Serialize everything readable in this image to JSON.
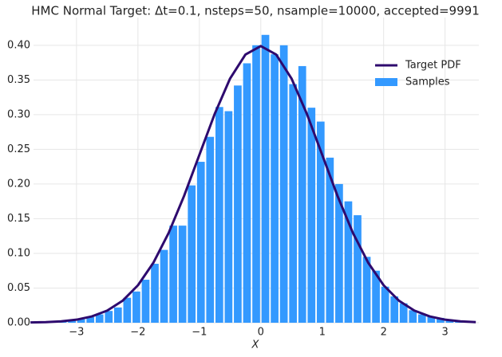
{
  "chart_data": {
    "type": "histogram",
    "title": "HMC Normal Target: Δt=0.1, nsteps=50, nsample=10000, accepted=9991",
    "x_label": "X",
    "xlim": [
      -3.7,
      3.55
    ],
    "ylim": [
      0,
      0.44
    ],
    "xticks": [
      {
        "value": -3,
        "label": "−3"
      },
      {
        "value": -2,
        "label": "−2"
      },
      {
        "value": -1,
        "label": "−1"
      },
      0,
      1,
      2,
      3
    ],
    "yticks": [
      {
        "value": 0,
        "label": "0.00"
      },
      {
        "value": 0.05,
        "label": "0.05"
      },
      {
        "value": 0.1,
        "label": "0.10"
      },
      {
        "value": 0.15,
        "label": "0.15"
      },
      {
        "value": 0.2,
        "label": "0.20"
      },
      {
        "value": 0.25,
        "label": "0.25"
      },
      {
        "value": 0.3,
        "label": "0.30"
      },
      {
        "value": 0.35,
        "label": "0.35"
      },
      {
        "value": 0.4,
        "label": "0.40"
      }
    ],
    "grid": true,
    "legend": "upper right",
    "series": [
      {
        "name": "Target PDF",
        "type": "line",
        "color": "#2e0a6e",
        "x": [
          -3.75,
          -3.5,
          -3.25,
          -3,
          -2.75,
          -2.5,
          -2.25,
          -2,
          -1.75,
          -1.5,
          -1.25,
          -1,
          -0.75,
          -0.5,
          -0.25,
          0,
          0.25,
          0.5,
          0.75,
          1,
          1.25,
          1.5,
          1.75,
          2,
          2.25,
          2.5,
          2.75,
          3,
          3.25,
          3.5
        ],
        "values": [
          0.0004,
          0.0009,
          0.002,
          0.0044,
          0.0091,
          0.0175,
          0.0317,
          0.054,
          0.0863,
          0.1295,
          0.1826,
          0.242,
          0.3011,
          0.3521,
          0.3867,
          0.3989,
          0.3867,
          0.3521,
          0.3011,
          0.242,
          0.1826,
          0.1295,
          0.0863,
          0.054,
          0.0317,
          0.0175,
          0.0091,
          0.0044,
          0.002,
          0.0009
        ]
      },
      {
        "name": "Samples",
        "type": "histogram",
        "color": "#3399ff",
        "bins": [
          -3.3,
          -3.15,
          -3.0,
          -2.85,
          -2.7,
          -2.55,
          -2.4,
          -2.25,
          -2.1,
          -1.95,
          -1.8,
          -1.65,
          -1.5,
          -1.35,
          -1.2,
          -1.05,
          -0.9,
          -0.75,
          -0.6,
          -0.45,
          -0.3,
          -0.15,
          0,
          0.15,
          0.3,
          0.45,
          0.6,
          0.75,
          0.9,
          1.05,
          1.2,
          1.35,
          1.5,
          1.65,
          1.8,
          1.95,
          2.1,
          2.25,
          2.4,
          2.55,
          2.7,
          2.85,
          3.0,
          3.15,
          3.3
        ],
        "values": [
          0.002,
          0.004,
          0.005,
          0.008,
          0.012,
          0.017,
          0.022,
          0.036,
          0.045,
          0.062,
          0.085,
          0.105,
          0.14,
          0.14,
          0.198,
          0.232,
          0.268,
          0.311,
          0.305,
          0.342,
          0.374,
          0.4,
          0.415,
          0.387,
          0.4,
          0.344,
          0.37,
          0.31,
          0.29,
          0.238,
          0.2,
          0.175,
          0.155,
          0.095,
          0.075,
          0.052,
          0.038,
          0.028,
          0.018,
          0.012,
          0.009,
          0.007,
          0.004,
          0.002
        ]
      }
    ]
  }
}
